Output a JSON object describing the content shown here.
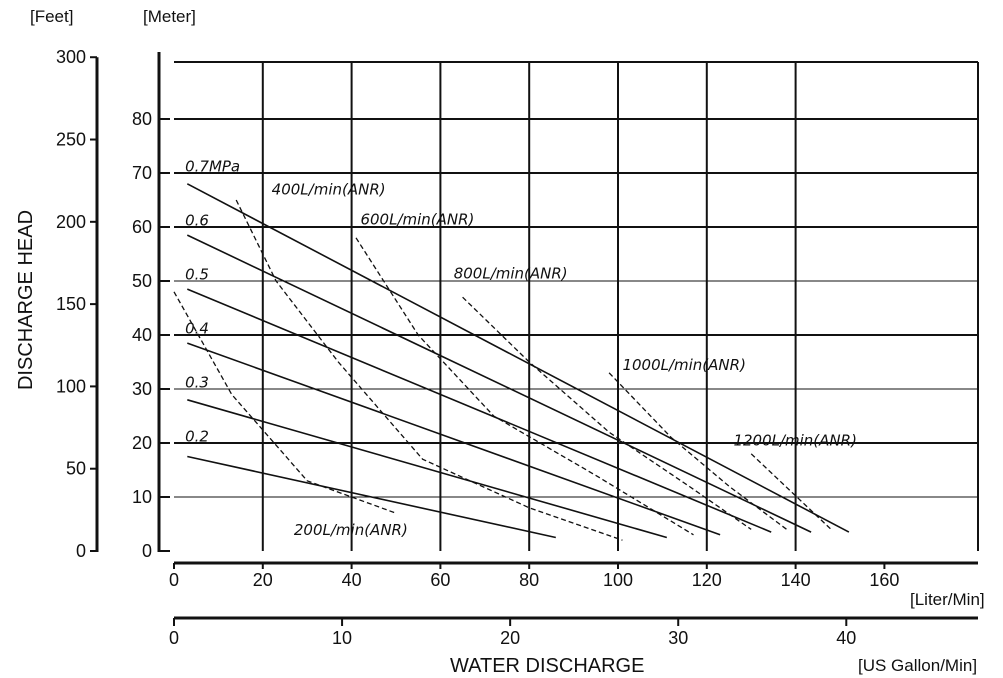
{
  "chart_data": {
    "type": "line",
    "title": "",
    "xlabel": "WATER DISCHARGE",
    "ylabel": "DISCHARGE HEAD",
    "x_unit_primary": "[Liter/Min]",
    "x_unit_secondary": "[US Gallon/Min]",
    "y_unit_feet": "[Feet]",
    "y_unit_meter": "[Meter]",
    "xlim": [
      0,
      180
    ],
    "ylim": [
      0,
      90
    ],
    "x_ticks_lpm": [
      0,
      20,
      40,
      60,
      80,
      100,
      120,
      140,
      160
    ],
    "x_ticks_gpm": [
      0,
      10,
      20,
      30,
      40
    ],
    "y_ticks_meter": [
      0,
      10,
      20,
      30,
      40,
      50,
      60,
      70,
      80
    ],
    "y_ticks_feet": [
      0,
      50,
      100,
      150,
      200,
      250,
      300
    ],
    "grid": true,
    "pressure_series": [
      {
        "name": "0.7MPa",
        "points": [
          [
            3,
            68
          ],
          [
            152,
            3.5
          ]
        ]
      },
      {
        "name": "0.6",
        "points": [
          [
            3,
            58.5
          ],
          [
            143.5,
            3.5
          ]
        ]
      },
      {
        "name": "0.5",
        "points": [
          [
            3,
            48.5
          ],
          [
            134.5,
            3.5
          ]
        ]
      },
      {
        "name": "0.4",
        "points": [
          [
            3,
            38.5
          ],
          [
            123,
            3
          ]
        ]
      },
      {
        "name": "0.3",
        "points": [
          [
            3,
            28
          ],
          [
            111,
            2.5
          ]
        ]
      },
      {
        "name": "0.2",
        "points": [
          [
            3,
            17.5
          ],
          [
            86,
            2.5
          ]
        ]
      }
    ],
    "air_consumption_series": [
      {
        "name": "200L/min(ANR)",
        "points": [
          [
            0,
            48
          ],
          [
            13,
            29
          ],
          [
            30,
            13
          ],
          [
            50,
            7
          ]
        ]
      },
      {
        "name": "400L/min(ANR)",
        "points": [
          [
            14,
            65
          ],
          [
            23,
            50
          ],
          [
            37,
            35
          ],
          [
            56,
            17
          ],
          [
            80,
            8
          ],
          [
            101,
            2
          ]
        ]
      },
      {
        "name": "600L/min(ANR)",
        "points": [
          [
            41,
            58
          ],
          [
            55,
            40
          ],
          [
            72,
            25
          ],
          [
            95,
            14
          ],
          [
            117,
            3
          ]
        ]
      },
      {
        "name": "800L/min(ANR)",
        "points": [
          [
            65,
            47
          ],
          [
            80,
            35
          ],
          [
            98,
            22
          ],
          [
            116,
            12
          ],
          [
            130,
            4
          ]
        ]
      },
      {
        "name": "1000L/min(ANR)",
        "points": [
          [
            98,
            33
          ],
          [
            112,
            21
          ],
          [
            125,
            12
          ],
          [
            138,
            4
          ]
        ]
      },
      {
        "name": "1200L/min(ANR)",
        "points": [
          [
            130,
            18
          ],
          [
            148,
            4
          ]
        ]
      }
    ]
  }
}
